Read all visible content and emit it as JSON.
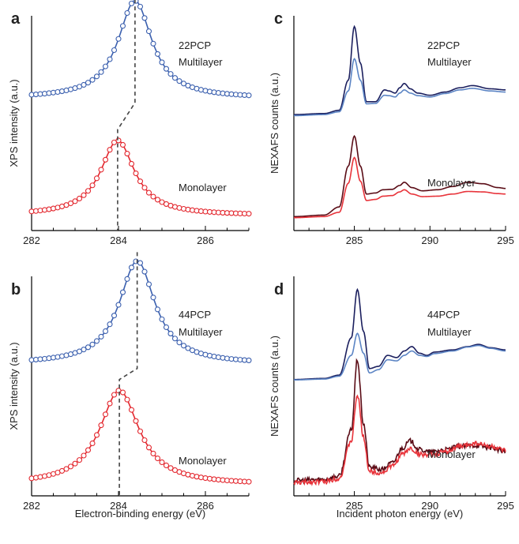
{
  "chart_data": [
    {
      "id": "a",
      "panel_label": "a",
      "type": "scatter",
      "xlabel": "",
      "ylabel": "XPS intensity (a.u.)",
      "xlim": [
        282,
        287
      ],
      "x_ticks": [
        "282",
        "284",
        "286"
      ],
      "annotations": [
        "22PCP",
        "Multilayer",
        "Monolayer"
      ],
      "grid": false,
      "style": "circles-with-fit-line",
      "series": [
        {
          "color": "#3a5fae",
          "peak_ev": 284.38,
          "fwhm_ev": 0.95,
          "baseline": 0.615,
          "amplitude": 0.455,
          "x": [
            282.0,
            282.5,
            283.0,
            283.3,
            283.6,
            283.8,
            284.0,
            284.2,
            284.38,
            284.6,
            284.8,
            285.0,
            285.3,
            285.6,
            286.0,
            286.5,
            287.0
          ],
          "y": [
            0.617,
            0.62,
            0.63,
            0.65,
            0.72,
            0.8,
            0.93,
            1.04,
            1.07,
            1.02,
            0.92,
            0.82,
            0.72,
            0.67,
            0.64,
            0.625,
            0.618
          ]
        },
        {
          "color": "#e3262d",
          "peak_ev": 283.98,
          "fwhm_ev": 0.95,
          "baseline": 0.07,
          "amplitude": 0.35,
          "x": [
            282.0,
            282.5,
            283.0,
            283.3,
            283.6,
            283.8,
            283.98,
            284.2,
            284.4,
            284.6,
            284.8,
            285.0,
            285.3,
            285.6,
            286.0,
            286.5,
            287.0
          ],
          "y": [
            0.072,
            0.078,
            0.1,
            0.15,
            0.25,
            0.35,
            0.42,
            0.38,
            0.3,
            0.23,
            0.18,
            0.14,
            0.11,
            0.095,
            0.085,
            0.078,
            0.073
          ]
        }
      ],
      "peak_markers_ev": [
        284.38,
        283.98
      ]
    },
    {
      "id": "b",
      "panel_label": "b",
      "type": "scatter",
      "xlabel": "Electron-binding energy (eV)",
      "ylabel": "XPS intensity (a.u.)",
      "xlim": [
        282,
        287
      ],
      "x_ticks": [
        "282",
        "284",
        "286"
      ],
      "annotations": [
        "44PCP",
        "Multilayer",
        "Monolayer"
      ],
      "grid": false,
      "style": "circles-with-fit-line",
      "series": [
        {
          "color": "#3a5fae",
          "peak_ev": 284.43,
          "fwhm_ev": 1.0,
          "baseline": 0.6,
          "amplitude": 0.47,
          "x": [
            282.0,
            282.5,
            283.0,
            283.3,
            283.6,
            283.8,
            284.0,
            284.2,
            284.43,
            284.6,
            284.8,
            285.0,
            285.3,
            285.6,
            286.0,
            286.5,
            287.0
          ],
          "y": [
            0.602,
            0.606,
            0.618,
            0.64,
            0.7,
            0.78,
            0.89,
            1.01,
            1.07,
            1.04,
            0.95,
            0.85,
            0.74,
            0.68,
            0.64,
            0.618,
            0.608
          ]
        },
        {
          "color": "#e3262d",
          "peak_ev": 284.02,
          "fwhm_ev": 1.1,
          "baseline": 0.05,
          "amplitude": 0.43,
          "x": [
            282.0,
            282.5,
            283.0,
            283.3,
            283.6,
            283.8,
            284.02,
            284.2,
            284.4,
            284.6,
            284.8,
            285.0,
            285.3,
            285.6,
            286.0,
            286.5,
            287.0
          ],
          "y": [
            0.052,
            0.06,
            0.09,
            0.16,
            0.29,
            0.4,
            0.48,
            0.46,
            0.4,
            0.32,
            0.25,
            0.19,
            0.13,
            0.095,
            0.075,
            0.06,
            0.055
          ]
        }
      ],
      "peak_markers_ev": [
        284.43,
        284.02
      ]
    },
    {
      "id": "c",
      "panel_label": "c",
      "type": "line",
      "xlabel": "",
      "ylabel": "NEXAFS counts (a.u.)",
      "xlim": [
        281,
        295
      ],
      "x_ticks": [
        "285",
        "290",
        "295"
      ],
      "annotations": [
        "22PCP",
        "Multilayer",
        "Monolayer"
      ],
      "grid": false,
      "series": [
        {
          "color": "#1b1f5e",
          "noise": false,
          "x": [
            281,
            283,
            284,
            284.6,
            285,
            285.4,
            285.8,
            286.4,
            287.0,
            287.3,
            287.7,
            288.0,
            288.3,
            288.7,
            289.2,
            290,
            291,
            292,
            292.8,
            294,
            295
          ],
          "y": [
            0.54,
            0.545,
            0.56,
            0.7,
            0.95,
            0.78,
            0.6,
            0.6,
            0.655,
            0.65,
            0.64,
            0.665,
            0.685,
            0.66,
            0.64,
            0.63,
            0.645,
            0.665,
            0.675,
            0.66,
            0.655
          ]
        },
        {
          "color": "#5b84c4",
          "noise": false,
          "x": [
            281,
            283,
            284,
            284.6,
            285,
            285.4,
            285.8,
            286.4,
            287.0,
            287.3,
            287.7,
            288.0,
            288.3,
            288.7,
            289.2,
            290,
            291,
            292,
            292.8,
            294,
            295
          ],
          "y": [
            0.535,
            0.54,
            0.553,
            0.65,
            0.8,
            0.7,
            0.59,
            0.592,
            0.63,
            0.628,
            0.622,
            0.64,
            0.655,
            0.64,
            0.628,
            0.622,
            0.638,
            0.655,
            0.662,
            0.65,
            0.645
          ]
        },
        {
          "color": "#5a0c16",
          "noise": false,
          "x": [
            281,
            283,
            284,
            284.6,
            285,
            285.4,
            285.8,
            286.4,
            286.9,
            287.5,
            288.0,
            288.3,
            288.8,
            289.5,
            290.5,
            291.5,
            292.5,
            293.5,
            294.5,
            295
          ],
          "y": [
            0.065,
            0.072,
            0.11,
            0.3,
            0.44,
            0.3,
            0.17,
            0.175,
            0.19,
            0.192,
            0.21,
            0.225,
            0.2,
            0.185,
            0.19,
            0.205,
            0.225,
            0.218,
            0.2,
            0.196
          ]
        },
        {
          "color": "#e8333a",
          "noise": false,
          "x": [
            281,
            283,
            284,
            284.6,
            285,
            285.4,
            285.8,
            286.4,
            286.9,
            287.5,
            288.0,
            288.3,
            288.8,
            289.5,
            290.5,
            291.5,
            292.5,
            293.5,
            294.5,
            295
          ],
          "y": [
            0.06,
            0.065,
            0.085,
            0.22,
            0.34,
            0.23,
            0.14,
            0.145,
            0.16,
            0.163,
            0.18,
            0.19,
            0.17,
            0.158,
            0.16,
            0.17,
            0.182,
            0.18,
            0.172,
            0.17
          ]
        }
      ]
    },
    {
      "id": "d",
      "panel_label": "d",
      "type": "line",
      "xlabel": "Incident photon energy (eV)",
      "ylabel": "NEXAFS counts (a.u.)",
      "xlim": [
        281,
        295
      ],
      "x_ticks": [
        "285",
        "290",
        "295"
      ],
      "annotations": [
        "44PCP",
        "Multilayer",
        "Monolayer"
      ],
      "grid": false,
      "series": [
        {
          "color": "#1b1f5e",
          "noise": false,
          "x": [
            281,
            283,
            284,
            284.8,
            285.2,
            285.6,
            286.0,
            286.6,
            287.2,
            287.8,
            288.3,
            288.8,
            289.3,
            289.8,
            290.3,
            291.5,
            292.5,
            293.2,
            294,
            295
          ],
          "y": [
            0.53,
            0.535,
            0.55,
            0.72,
            0.94,
            0.75,
            0.58,
            0.59,
            0.64,
            0.63,
            0.66,
            0.68,
            0.65,
            0.64,
            0.655,
            0.665,
            0.68,
            0.69,
            0.675,
            0.665
          ]
        },
        {
          "color": "#5b84c4",
          "noise": false,
          "x": [
            281,
            283,
            284,
            284.8,
            285.2,
            285.6,
            286.0,
            286.6,
            287.2,
            287.8,
            288.3,
            288.8,
            289.3,
            289.8,
            290.3,
            291.5,
            292.5,
            293.2,
            294,
            295
          ],
          "y": [
            0.528,
            0.532,
            0.545,
            0.64,
            0.74,
            0.65,
            0.56,
            0.575,
            0.62,
            0.615,
            0.64,
            0.66,
            0.64,
            0.635,
            0.648,
            0.66,
            0.678,
            0.685,
            0.672,
            0.66
          ]
        },
        {
          "color": "#5a0c16",
          "noise": true,
          "x": [
            281,
            283,
            284,
            284.8,
            285.2,
            285.6,
            286.0,
            286.8,
            287.5,
            288.2,
            288.7,
            289.3,
            290,
            291,
            292,
            293,
            294,
            295
          ],
          "y": [
            0.07,
            0.075,
            0.09,
            0.3,
            0.62,
            0.33,
            0.13,
            0.12,
            0.15,
            0.22,
            0.25,
            0.21,
            0.2,
            0.21,
            0.225,
            0.23,
            0.22,
            0.2
          ]
        },
        {
          "color": "#e8333a",
          "noise": true,
          "x": [
            281,
            283,
            284,
            284.8,
            285.2,
            285.6,
            286.0,
            286.8,
            287.5,
            288.2,
            288.7,
            289.3,
            290,
            291,
            292,
            293,
            294,
            295
          ],
          "y": [
            0.06,
            0.065,
            0.08,
            0.25,
            0.46,
            0.27,
            0.11,
            0.105,
            0.135,
            0.19,
            0.215,
            0.19,
            0.185,
            0.2,
            0.225,
            0.24,
            0.225,
            0.205
          ]
        }
      ]
    }
  ]
}
